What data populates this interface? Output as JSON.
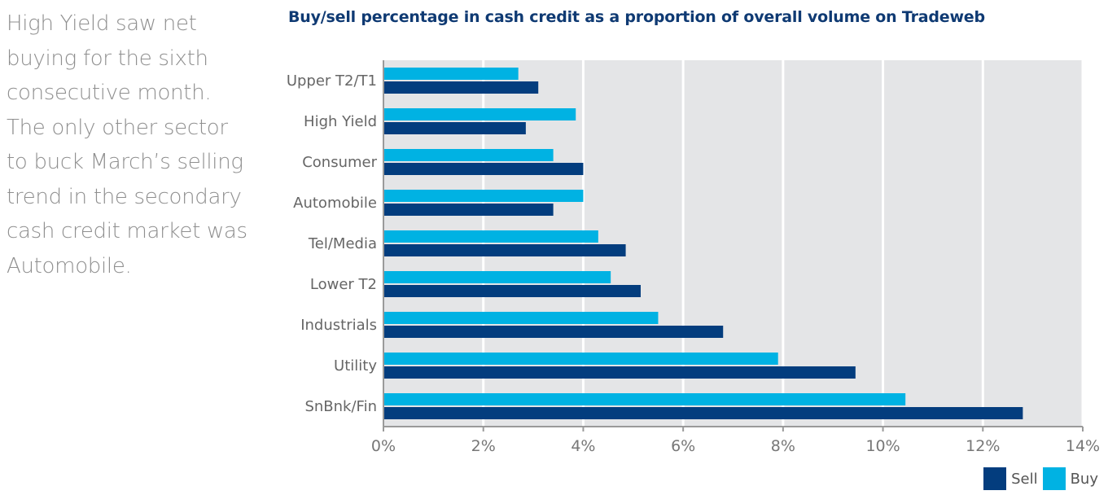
{
  "narrative": {
    "lines": [
      "High Yield saw net",
      "buying for the sixth",
      "consecutive month.",
      "The only other sector",
      "to buck March’s selling",
      "trend in the secondary",
      "cash credit market was",
      "Automobile."
    ]
  },
  "chart_data": {
    "type": "bar",
    "orientation": "horizontal",
    "title": "Buy/sell percentage in cash credit as a proportion of overall volume on Tradeweb",
    "xlabel": "",
    "ylabel": "",
    "categories": [
      "Upper T2/T1",
      "High Yield",
      "Consumer",
      "Automobile",
      "Tel/Media",
      "Lower T2",
      "Industrials",
      "Utility",
      "SnBnk/Fin"
    ],
    "series": [
      {
        "name": "Buy",
        "color": "#00b2e3",
        "values": [
          2.7,
          3.85,
          3.4,
          4.0,
          4.3,
          4.55,
          5.5,
          7.9,
          10.45
        ]
      },
      {
        "name": "Sell",
        "color": "#033d7e",
        "values": [
          3.1,
          2.85,
          4.0,
          3.4,
          4.85,
          5.15,
          6.8,
          9.45,
          12.8
        ]
      }
    ],
    "xlim": [
      0,
      14
    ],
    "x_ticks": [
      "0%",
      "2%",
      "4%",
      "6%",
      "8%",
      "10%",
      "12%",
      "14%"
    ],
    "grid": true,
    "legend_placement": "bottom-right",
    "legend": [
      {
        "name": "Sell",
        "color": "#033d7e"
      },
      {
        "name": "Buy",
        "color": "#00b2e3"
      }
    ]
  }
}
